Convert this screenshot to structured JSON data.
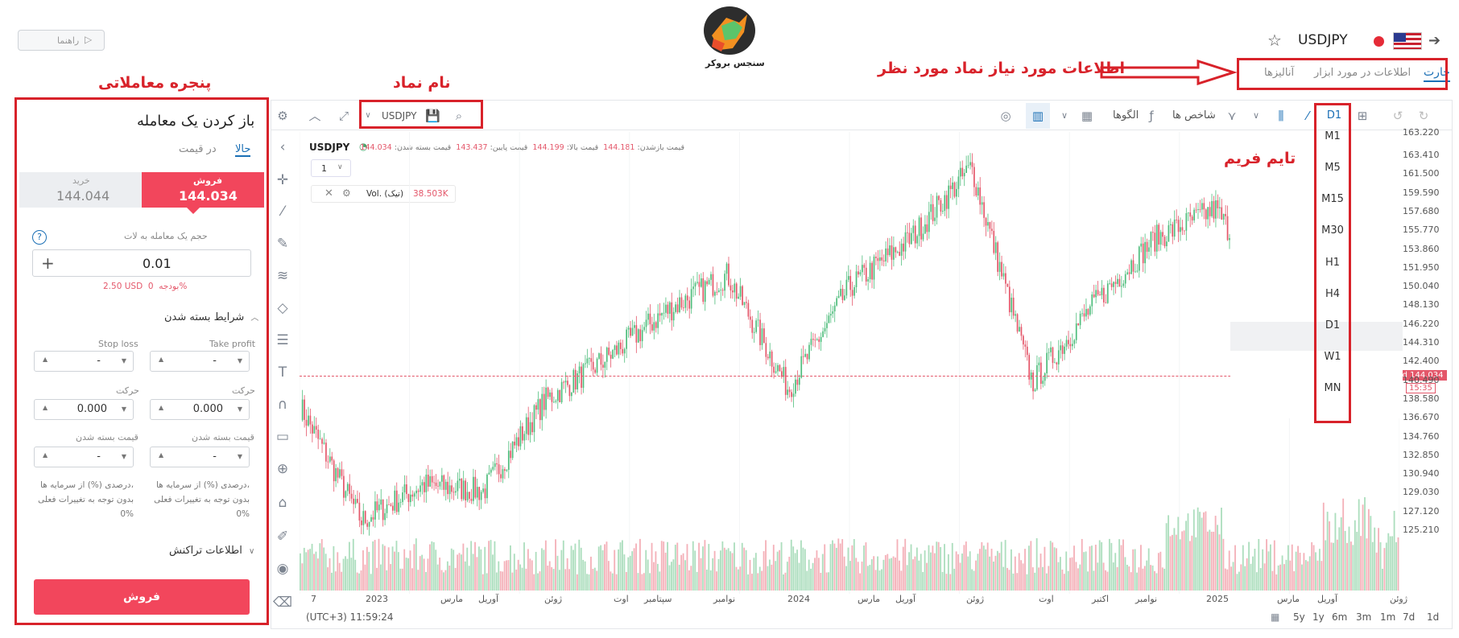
{
  "header": {
    "symbol": "USDJPY",
    "guide_label": "راهنما",
    "logo_caption": "سنجس بروکر"
  },
  "tabs": [
    "چارت",
    "اطلاعات در مورد ابزار",
    "آنالیزها"
  ],
  "toolbar": {
    "symbol": "USDJPY",
    "indicators": "شاخص ها",
    "patterns": "الگوها",
    "timeframe": "D1"
  },
  "legend": {
    "symbol": "USDJPY",
    "open_label": "قیمت بازشدن:",
    "open_value": "144.181",
    "high_label": "قیمت بالا:",
    "high_value": "144.199",
    "low_label": "قیمت پایین:",
    "low_value": "143.437",
    "close_label": "قیمت بسته شدن:",
    "close_value": "144.034",
    "multiplier": "1",
    "vol_label": "Vol. (تیک)",
    "vol_value": "38.503K"
  },
  "timeframes": [
    "M1",
    "M5",
    "M15",
    "M30",
    "H1",
    "H4",
    "D1",
    "W1",
    "MN"
  ],
  "price_axis": [
    "163.220",
    "161.500",
    "159.590",
    "157.680",
    "155.770",
    "153.860",
    "151.950",
    "150.040",
    "148.130",
    "146.220",
    "144.310",
    "142.400",
    "140.490",
    "138.580",
    "136.670",
    "134.760",
    "132.850",
    "130.940",
    "129.030",
    "127.120",
    "125.210"
  ],
  "price_top": "163.410",
  "bid": {
    "label": "Bid 144.034",
    "time": "15:35"
  },
  "x_axis": [
    "7",
    "2023",
    "مارس",
    "آوریل",
    "ژوئن",
    "اوت",
    "سپتامبر",
    "نوامبر",
    "2024",
    "مارس",
    "آوریل",
    "ژوئن",
    "اوت",
    "اکتبر",
    "نوامبر",
    "2025",
    "مارس",
    "آوریل",
    "ژوئن"
  ],
  "bottom": {
    "clock": "(UTC+3) 11:59:24",
    "ranges": [
      "5y",
      "1y",
      "6m",
      "3m",
      "1m",
      "7d",
      "1d"
    ]
  },
  "panel": {
    "title": "باز کردن یک معامله",
    "tab_now": "حالا",
    "tab_price": "در قیمت",
    "sell_label": "فروش",
    "sell_price": "144.034",
    "buy_label": "خرید",
    "buy_price": "144.044",
    "volume_label": "حجم یک معامله به لات",
    "volume_value": "0.01",
    "budget": "2.50 USD  بودجه  0%",
    "close_conditions": "شرایط بسته شدن",
    "take_profit": "Take profit",
    "stop_loss": "Stop loss",
    "move": "حرکت",
    "close_price": "قیمت بسته شدن",
    "dash": "-",
    "zero": "0.000",
    "note1": "درصدی (%) از سرمایه ها،",
    "note2": "بدون توجه به تغییرات فعلی",
    "note3": "0%",
    "tx_info": "اطلاعات تراکنش",
    "sell_button": "فروش"
  },
  "annotations": {
    "trade_window": "پنجره معاملاتی",
    "symbol_name": "نام نماد",
    "info": "اطلاعات مورد نیاز نماد مورد نظر",
    "timeframe": "تایم فریم"
  },
  "chart_data": {
    "type": "candlestick",
    "symbol": "USDJPY",
    "timeframe": "D1",
    "ylim": [
      125.21,
      163.41
    ],
    "x": [
      "2022-12",
      "2023-01",
      "2023-03",
      "2023-04",
      "2023-06",
      "2023-08",
      "2023-09",
      "2023-11",
      "2024-01",
      "2024-03",
      "2024-04",
      "2024-06",
      "2024-08",
      "2024-10",
      "2024-11",
      "2025-01",
      "2025-03",
      "2025-04",
      "2025-06"
    ],
    "y": [
      140.5,
      131.0,
      134.0,
      133.5,
      141.0,
      144.5,
      148.5,
      151.5,
      142.0,
      150.5,
      154.5,
      160.5,
      142.5,
      149.0,
      154.5,
      157.0,
      149.0,
      143.0,
      144.0
    ]
  }
}
